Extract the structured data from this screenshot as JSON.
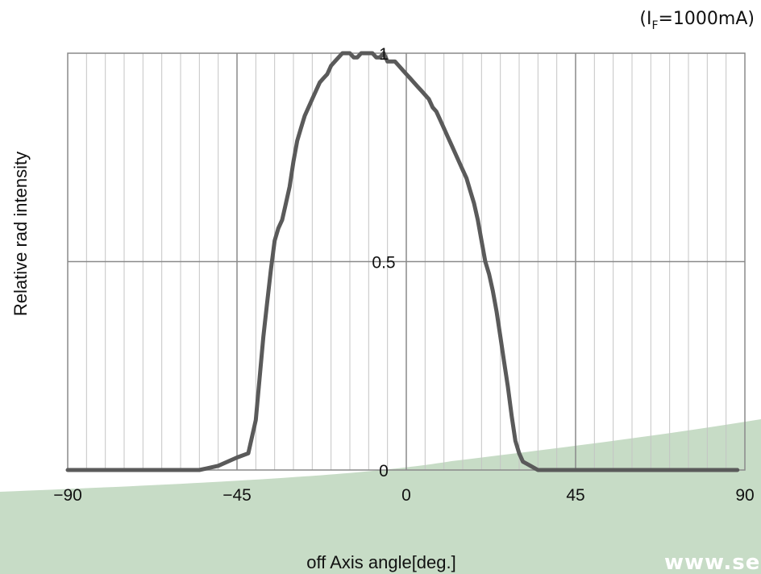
{
  "condition": {
    "prefix": "(I",
    "subscript": "F",
    "suffix": "=1000mA)"
  },
  "watermark": "www.se",
  "chart_data": {
    "type": "line",
    "title": "",
    "xlabel": "off Axis angle[deg.]",
    "ylabel": "Relative rad intensity",
    "xlim": [
      -90,
      90
    ],
    "ylim": [
      0,
      1
    ],
    "x_tick_labels": [
      "−90",
      "−45",
      "0",
      "45",
      "90"
    ],
    "y_tick_labels": [
      "0",
      "0.5",
      "1"
    ],
    "grid": "vertical every 5 deg, horizontal at 0.5",
    "legend": "none",
    "series": [
      {
        "color": "#5a5a5a",
        "x": [
          -90,
          -85,
          -80,
          -75,
          -70,
          -65,
          -60,
          -55,
          -50,
          -45,
          -42,
          -40,
          -39,
          -38,
          -37,
          -36,
          -35,
          -34,
          -33,
          -32,
          -31,
          -30,
          -29,
          -28,
          -27,
          -26,
          -25,
          -24,
          -23,
          -22,
          -21,
          -20,
          -19,
          -18,
          -17,
          -16,
          -15,
          -14,
          -13,
          -12,
          -11,
          -10,
          -9,
          -8,
          -7,
          -6,
          -5,
          -4,
          -3,
          -2,
          -1,
          0,
          1,
          2,
          3,
          4,
          5,
          6,
          7,
          8,
          9,
          10,
          11,
          12,
          13,
          14,
          15,
          16,
          17,
          18,
          19,
          20,
          21,
          22,
          23,
          24,
          25,
          26,
          27,
          28,
          29,
          30,
          31,
          32,
          33,
          34,
          35,
          36,
          37,
          38,
          40,
          45,
          50,
          55,
          60,
          65,
          70,
          75,
          80,
          85,
          88
        ],
        "y": [
          0.0,
          0.0,
          0.0,
          0.0,
          0.0,
          0.0,
          0.0,
          0.0,
          0.01,
          0.03,
          0.04,
          0.12,
          0.22,
          0.32,
          0.4,
          0.48,
          0.55,
          0.58,
          0.6,
          0.64,
          0.68,
          0.74,
          0.79,
          0.82,
          0.85,
          0.87,
          0.89,
          0.91,
          0.93,
          0.94,
          0.95,
          0.97,
          0.98,
          0.99,
          1.0,
          1.0,
          1.0,
          0.99,
          0.99,
          1.0,
          1.0,
          1.0,
          1.0,
          0.99,
          0.99,
          1.0,
          0.98,
          0.98,
          0.98,
          0.97,
          0.96,
          0.95,
          0.94,
          0.93,
          0.92,
          0.91,
          0.9,
          0.89,
          0.87,
          0.86,
          0.84,
          0.82,
          0.8,
          0.78,
          0.76,
          0.74,
          0.72,
          0.7,
          0.67,
          0.64,
          0.6,
          0.55,
          0.5,
          0.47,
          0.43,
          0.38,
          0.32,
          0.26,
          0.2,
          0.13,
          0.07,
          0.04,
          0.02,
          0.015,
          0.01,
          0.005,
          0.0,
          0.0,
          0.0,
          0.0,
          0.0,
          0.0,
          0.0,
          0.0,
          0.0,
          0.0,
          0.0,
          0.0,
          0.0,
          0.0,
          0.0
        ]
      }
    ]
  }
}
